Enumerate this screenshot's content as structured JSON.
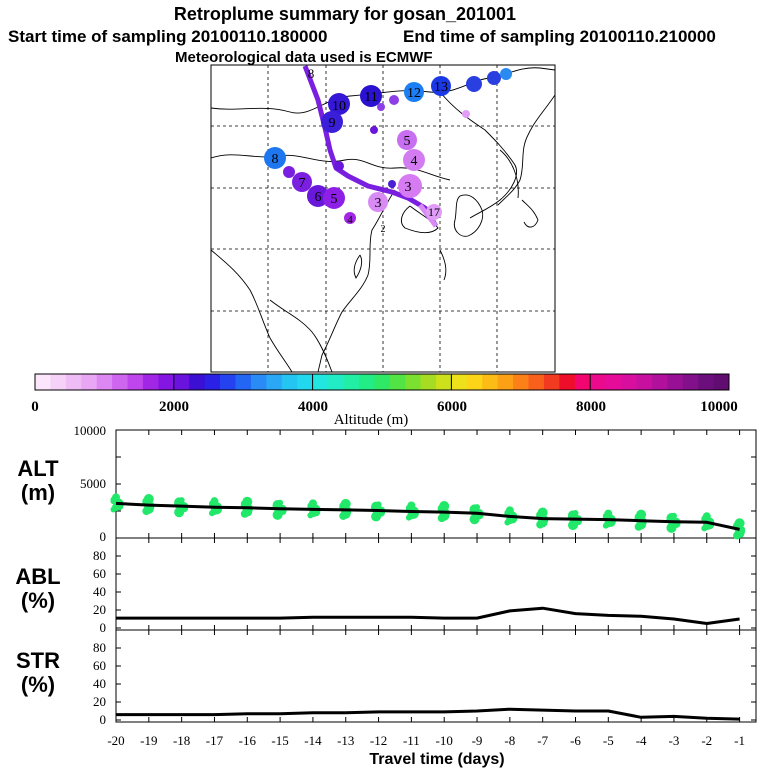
{
  "header": {
    "title": "Retroplume summary for gosan_201001",
    "start_time": "Start time of sampling 20100110.180000",
    "end_time": "End time of sampling 20100110.210000",
    "met_data": "Meteorological data used is ECMWF"
  },
  "colorbar": {
    "label": "Altitude (m)",
    "ticks": [
      "0",
      "2000",
      "4000",
      "6000",
      "8000",
      "10000"
    ],
    "min": 0,
    "max": 10000
  },
  "map_labels": [
    {
      "text": "8",
      "color": "#6d5cf7"
    },
    {
      "text": "10",
      "color": "#3517d6"
    },
    {
      "text": "11",
      "color": "#2a12d0"
    },
    {
      "text": "12",
      "color": "#1b7ff3"
    },
    {
      "text": "13",
      "color": "#1b38e5"
    },
    {
      "text": "9",
      "color": "#3a1ed8"
    },
    {
      "text": "8",
      "color": "#1f77ef"
    },
    {
      "text": "7",
      "color": "#7a1fe0"
    },
    {
      "text": "6",
      "color": "#6a17dc"
    },
    {
      "text": "5",
      "color": "#8d1fe6"
    },
    {
      "text": "5",
      "color": "#c86ef0"
    },
    {
      "text": "4",
      "color": "#d37cf2"
    },
    {
      "text": "3",
      "color": "#d77bf3"
    },
    {
      "text": "3",
      "color": "#d88af5"
    },
    {
      "text": "4",
      "color": "#a326e6"
    },
    {
      "text": "17",
      "color": "#e09cf6"
    },
    {
      "text": "2",
      "color": "#a740e8"
    }
  ],
  "chart_data": [
    {
      "type": "scatter",
      "name": "ALT",
      "ylabel": "ALT\n(m)",
      "ylabel_lines": [
        "ALT",
        "(m)"
      ],
      "ylim": [
        0,
        10000
      ],
      "yticks": [
        "10000",
        "5000",
        "0"
      ],
      "xlim": [
        -20,
        -0.5
      ],
      "series": [
        {
          "name": "median altitude",
          "x": [
            -20,
            -19,
            -18,
            -17,
            -16,
            -15,
            -14,
            -13,
            -12,
            -11,
            -10,
            -9,
            -8,
            -7,
            -6,
            -5,
            -4,
            -3,
            -2,
            -1
          ],
          "values": [
            3200,
            3050,
            2950,
            2850,
            2800,
            2700,
            2650,
            2600,
            2550,
            2450,
            2400,
            2300,
            2000,
            1800,
            1750,
            1700,
            1600,
            1500,
            1450,
            800
          ]
        }
      ],
      "dot_color": "#22e86a"
    },
    {
      "type": "line",
      "name": "ABL",
      "ylabel_lines": [
        "ABL",
        "(%)"
      ],
      "ylim": [
        0,
        100
      ],
      "yticks": [
        "80",
        "60",
        "40",
        "20",
        "0"
      ],
      "xlim": [
        -20,
        -0.5
      ],
      "series": [
        {
          "name": "ABL fraction",
          "x": [
            -20,
            -19,
            -18,
            -17,
            -16,
            -15,
            -14,
            -13,
            -12,
            -11,
            -10,
            -9,
            -8,
            -7,
            -6,
            -5,
            -4,
            -3,
            -2,
            -1
          ],
          "values": [
            11,
            11,
            11,
            11,
            11,
            11,
            12,
            12,
            12,
            12,
            11,
            11,
            19,
            22,
            16,
            14,
            13,
            10,
            5,
            10
          ]
        }
      ]
    },
    {
      "type": "line",
      "name": "STR",
      "ylabel_lines": [
        "STR",
        "(%)"
      ],
      "ylim": [
        0,
        100
      ],
      "yticks": [
        "80",
        "60",
        "40",
        "20",
        "0"
      ],
      "xlim": [
        -20,
        -0.5
      ],
      "series": [
        {
          "name": "STR fraction",
          "x": [
            -20,
            -19,
            -18,
            -17,
            -16,
            -15,
            -14,
            -13,
            -12,
            -11,
            -10,
            -9,
            -8,
            -7,
            -6,
            -5,
            -4,
            -3,
            -2,
            -1
          ],
          "values": [
            6,
            6,
            6,
            6,
            7,
            7,
            8,
            8,
            9,
            9,
            9,
            10,
            12,
            11,
            10,
            10,
            3,
            4,
            2,
            1
          ]
        }
      ]
    }
  ],
  "xaxis": {
    "label": "Travel time (days)",
    "ticks": [
      "-20",
      "-19",
      "-18",
      "-17",
      "-16",
      "-15",
      "-14",
      "-13",
      "-12",
      "-11",
      "-10",
      "-9",
      "-8",
      "-7",
      "-6",
      "-5",
      "-4",
      "-3",
      "-2",
      "-1"
    ]
  }
}
